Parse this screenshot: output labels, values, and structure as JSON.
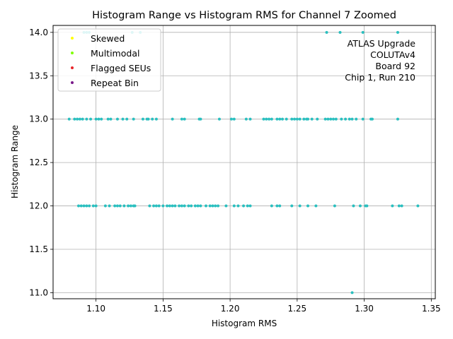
{
  "chart_data": {
    "type": "scatter",
    "title": "Histogram Range vs Histogram RMS for Channel 7 Zoomed",
    "xlabel": "Histogram RMS",
    "ylabel": "Histogram Range",
    "xlim": [
      1.068,
      1.353
    ],
    "ylim": [
      10.93,
      14.08
    ],
    "xticks": [
      "1.10",
      "1.15",
      "1.20",
      "1.25",
      "1.30",
      "1.35"
    ],
    "xtick_values": [
      1.1,
      1.15,
      1.2,
      1.25,
      1.3,
      1.35
    ],
    "yticks": [
      "11.0",
      "11.5",
      "12.0",
      "12.5",
      "13.0",
      "13.5",
      "14.0"
    ],
    "ytick_values": [
      11.0,
      11.5,
      12.0,
      12.5,
      13.0,
      13.5,
      14.0
    ],
    "grid": true,
    "legend_position": "top-left",
    "legend": [
      {
        "label": "Skewed",
        "color": "#ffff00"
      },
      {
        "label": "Multimodal",
        "color": "#80ff00"
      },
      {
        "label": "Flagged SEUs",
        "color": "#e8262a"
      },
      {
        "label": "Repeat Bin",
        "color": "#7a1a8a"
      }
    ],
    "annotation_lines": [
      "ATLAS Upgrade",
      "COLUTAv4",
      "Board 92",
      "Chip 1, Run 210"
    ],
    "point_color": "#2abfbf",
    "series": [
      {
        "values_y": 14.0,
        "x": [
          1.091,
          1.093,
          1.095,
          1.127,
          1.133,
          1.272,
          1.282,
          1.299,
          1.325
        ]
      },
      {
        "values_y": 13.0,
        "x": [
          1.08,
          1.084,
          1.086,
          1.088,
          1.09,
          1.093,
          1.096,
          1.1,
          1.102,
          1.104,
          1.109,
          1.111,
          1.116,
          1.12,
          1.123,
          1.128,
          1.135,
          1.138,
          1.139,
          1.142,
          1.145,
          1.157,
          1.164,
          1.166,
          1.177,
          1.178,
          1.192,
          1.201,
          1.203,
          1.212,
          1.215,
          1.225,
          1.227,
          1.229,
          1.231,
          1.235,
          1.237,
          1.239,
          1.242,
          1.246,
          1.248,
          1.25,
          1.252,
          1.255,
          1.257,
          1.258,
          1.261,
          1.265,
          1.271,
          1.273,
          1.275,
          1.277,
          1.279,
          1.283,
          1.286,
          1.289,
          1.291,
          1.294,
          1.299,
          1.305,
          1.306,
          1.325
        ]
      },
      {
        "values_y": 12.0,
        "x": [
          1.087,
          1.089,
          1.091,
          1.093,
          1.095,
          1.098,
          1.1,
          1.107,
          1.11,
          1.114,
          1.116,
          1.118,
          1.121,
          1.124,
          1.126,
          1.128,
          1.129,
          1.14,
          1.143,
          1.145,
          1.147,
          1.15,
          1.153,
          1.155,
          1.157,
          1.159,
          1.162,
          1.164,
          1.166,
          1.169,
          1.171,
          1.174,
          1.176,
          1.178,
          1.182,
          1.185,
          1.187,
          1.189,
          1.191,
          1.197,
          1.203,
          1.206,
          1.21,
          1.213,
          1.215,
          1.231,
          1.235,
          1.237,
          1.246,
          1.252,
          1.258,
          1.264,
          1.278,
          1.292,
          1.297,
          1.301,
          1.302,
          1.321,
          1.326,
          1.328,
          1.34
        ]
      },
      {
        "values_y": 11.0,
        "x": [
          1.291
        ]
      }
    ]
  }
}
